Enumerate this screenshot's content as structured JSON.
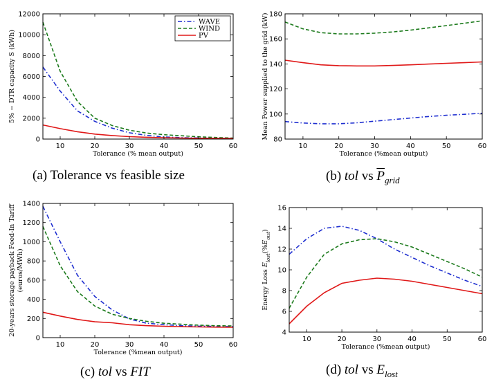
{
  "colors": {
    "WAVE": "#1f2fd0",
    "WIND": "#1c7a1c",
    "PV": "#e01818"
  },
  "captions": {
    "a": {
      "text": "(a) Tolerance vs feasible size"
    },
    "b": {
      "pre": "(b) ",
      "tol": "tol",
      "mid": " vs ",
      "P": "P",
      "sub": "grid"
    },
    "c": {
      "pre": "(c) ",
      "tol": "tol",
      "mid": " vs ",
      "fit": "FIT"
    },
    "d": {
      "pre": "(d) ",
      "tol": "tol",
      "mid": " vs ",
      "E": "E",
      "sub": "lost"
    }
  },
  "chart_data": [
    {
      "id": "a",
      "type": "line",
      "xlabel": "Tolerance (% mean output)",
      "ylabel": "5% − DTR capacity S (kWh)",
      "xlim": [
        5,
        60
      ],
      "ylim": [
        0,
        12000
      ],
      "xticks": [
        10,
        20,
        30,
        40,
        50,
        60
      ],
      "yticks": [
        0,
        2000,
        4000,
        6000,
        8000,
        10000,
        12000
      ],
      "legend": {
        "position": "top-right",
        "entries": [
          "WAVE",
          "WIND",
          "PV"
        ]
      },
      "x": [
        5,
        10,
        15,
        20,
        25,
        30,
        35,
        40,
        45,
        50,
        55,
        60
      ],
      "series": [
        {
          "name": "WAVE",
          "style": "dashdot",
          "values": [
            6900,
            4600,
            2700,
            1700,
            1050,
            600,
            350,
            200,
            140,
            100,
            80,
            60
          ]
        },
        {
          "name": "WIND",
          "style": "dashed",
          "values": [
            11200,
            6500,
            3600,
            2000,
            1300,
            850,
            580,
            420,
            320,
            220,
            150,
            100
          ]
        },
        {
          "name": "PV",
          "style": "solid",
          "values": [
            1350,
            1000,
            700,
            480,
            340,
            230,
            170,
            130,
            100,
            80,
            70,
            60
          ]
        }
      ]
    },
    {
      "id": "b",
      "type": "line",
      "xlabel": "Tolerance (%mean output)",
      "ylabel": "Mean Power supplied to the grid (kW)",
      "xlim": [
        5,
        60
      ],
      "ylim": [
        80,
        180
      ],
      "xticks": [
        10,
        20,
        30,
        40,
        50,
        60
      ],
      "yticks": [
        80,
        100,
        120,
        140,
        160,
        180
      ],
      "x": [
        5,
        10,
        15,
        20,
        25,
        30,
        35,
        40,
        45,
        50,
        55,
        60
      ],
      "series": [
        {
          "name": "WAVE",
          "style": "dashdot",
          "values": [
            94,
            92.8,
            92.2,
            92.2,
            93,
            94.3,
            95.5,
            96.8,
            98,
            99,
            99.8,
            100.6
          ]
        },
        {
          "name": "WIND",
          "style": "dashed",
          "values": [
            173.5,
            168,
            165,
            164,
            164,
            164.6,
            165.5,
            167,
            168.8,
            170.6,
            172.5,
            174.5
          ]
        },
        {
          "name": "PV",
          "style": "solid",
          "values": [
            143,
            141,
            139.3,
            138.6,
            138.4,
            138.4,
            138.8,
            139.3,
            139.9,
            140.5,
            141,
            141.6
          ]
        }
      ]
    },
    {
      "id": "c",
      "type": "line",
      "xlabel": "Tolerance (%mean output)",
      "ylabel": "20-years storage payback Feed-In Tariff (euros/MWh)",
      "xlim": [
        5,
        60
      ],
      "ylim": [
        0,
        1400
      ],
      "xticks": [
        10,
        20,
        30,
        40,
        50,
        60
      ],
      "yticks": [
        0,
        200,
        400,
        600,
        800,
        1000,
        1200,
        1400
      ],
      "x": [
        5,
        10,
        15,
        20,
        25,
        30,
        35,
        40,
        45,
        50,
        55,
        60
      ],
      "series": [
        {
          "name": "WAVE",
          "style": "dashdot",
          "values": [
            1370,
            1000,
            650,
            430,
            290,
            195,
            150,
            135,
            125,
            120,
            118,
            115
          ]
        },
        {
          "name": "WIND",
          "style": "dashed",
          "values": [
            1160,
            750,
            480,
            330,
            245,
            200,
            170,
            150,
            140,
            130,
            125,
            122
          ]
        },
        {
          "name": "PV",
          "style": "solid",
          "values": [
            265,
            225,
            190,
            165,
            155,
            135,
            125,
            118,
            114,
            112,
            110,
            108
          ]
        }
      ]
    },
    {
      "id": "d",
      "type": "line",
      "xlabel": "Tolerance (%mean output)",
      "ylabel": "Energy Loss E_lost(%E_out)",
      "xlim": [
        5,
        60
      ],
      "ylim": [
        4,
        16
      ],
      "xticks": [
        10,
        20,
        30,
        40,
        50,
        60
      ],
      "yticks": [
        4,
        6,
        8,
        10,
        12,
        14,
        16
      ],
      "x": [
        5,
        10,
        15,
        20,
        25,
        30,
        35,
        40,
        45,
        50,
        55,
        60
      ],
      "series": [
        {
          "name": "WAVE",
          "style": "dashdot",
          "values": [
            11.5,
            13,
            14,
            14.2,
            13.8,
            13,
            12,
            11.2,
            10.4,
            9.7,
            9,
            8.4
          ]
        },
        {
          "name": "WIND",
          "style": "dashed",
          "values": [
            6.3,
            9.3,
            11.5,
            12.5,
            12.9,
            13,
            12.7,
            12.2,
            11.5,
            10.8,
            10.1,
            9.3
          ]
        },
        {
          "name": "PV",
          "style": "solid",
          "values": [
            4.8,
            6.5,
            7.8,
            8.7,
            9.0,
            9.2,
            9.1,
            8.9,
            8.6,
            8.3,
            8.0,
            7.7
          ]
        }
      ]
    }
  ]
}
